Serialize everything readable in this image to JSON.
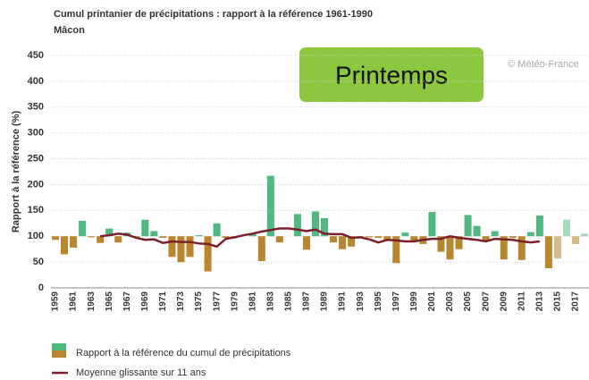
{
  "chart_data": {
    "type": "bar",
    "title": "Cumul printanier de précipitations : rapport à la référence 1961-1990",
    "subtitle": "Mâcon",
    "ylabel": "Rapport à la référence (%)",
    "watermark": "© Météo-France",
    "badge": "Printemps",
    "categories": [
      1959,
      null,
      1961,
      null,
      1963,
      null,
      1965,
      null,
      1967,
      null,
      1969,
      null,
      1971,
      null,
      1973,
      null,
      1975,
      null,
      1977,
      null,
      1979,
      null,
      1981,
      null,
      1983,
      null,
      1985,
      null,
      1987,
      null,
      1989,
      null,
      1991,
      null,
      1993,
      null,
      1995,
      null,
      1997,
      null,
      1999,
      null,
      2001,
      null,
      2003,
      null,
      2005,
      null,
      2007,
      null,
      2009,
      null,
      2011,
      null,
      2013,
      null,
      2015,
      null,
      2017,
      null
    ],
    "baseline": 100,
    "series": [
      {
        "name": "Rapport à la référence du cumul de précipitations",
        "color": "#52b882",
        "color_below": "#b8862e",
        "values": [
          93,
          65,
          78,
          130,
          98,
          87,
          115,
          88,
          107,
          98,
          132,
          110,
          97,
          60,
          50,
          60,
          102,
          32,
          125,
          97,
          98,
          100,
          104,
          52,
          217,
          88,
          100,
          143,
          74,
          148,
          135,
          88,
          75,
          80,
          97,
          98,
          97,
          93,
          48,
          107,
          90,
          85,
          147,
          70,
          55,
          75,
          141,
          120,
          92,
          110,
          55,
          97,
          54,
          108,
          140,
          38,
          57,
          132,
          85,
          105
        ],
        "colors": [
          "#b8862e",
          "#b8862e",
          "#b8862e",
          "#52b882",
          "#b8862e",
          "#b8862e",
          "#52b882",
          "#b8862e",
          "#52b882",
          "#b8862e",
          "#52b882",
          "#52b882",
          "#b8862e",
          "#b8862e",
          "#b8862e",
          "#b8862e",
          "#52b882",
          "#b8862e",
          "#52b882",
          "#b8862e",
          "#b8862e",
          "#52b882",
          "#52b882",
          "#b8862e",
          "#52b882",
          "#b8862e",
          "#52b882",
          "#52b882",
          "#b8862e",
          "#52b882",
          "#52b882",
          "#b8862e",
          "#b8862e",
          "#b8862e",
          "#b8862e",
          "#b8862e",
          "#b8862e",
          "#b8862e",
          "#b8862e",
          "#52b882",
          "#b8862e",
          "#b8862e",
          "#52b882",
          "#b8862e",
          "#b8862e",
          "#b8862e",
          "#52b882",
          "#52b882",
          "#b8862e",
          "#52b882",
          "#b8862e",
          "#b8862e",
          "#b8862e",
          "#52b882",
          "#52b882",
          "#b8862e",
          "#d9b98c",
          "#a6d8bc",
          "#d9b98c",
          "#a6d8bc"
        ]
      },
      {
        "name": "Moyenne glissante sur 11 ans",
        "type": "line",
        "color": "#7b1f2b",
        "values": [
          null,
          null,
          null,
          null,
          null,
          100,
          102,
          105,
          103,
          97,
          93,
          94,
          87,
          90,
          89,
          89,
          86,
          85,
          80,
          95,
          98,
          102,
          105,
          109,
          112,
          115,
          115,
          113,
          110,
          113,
          105,
          104,
          104,
          97,
          98,
          94,
          88,
          93,
          92,
          90,
          90,
          93,
          95,
          95,
          100,
          97,
          95,
          93,
          90,
          95,
          94,
          93,
          90,
          88,
          90,
          null,
          null,
          null,
          null,
          null
        ]
      }
    ],
    "ylim": [
      0,
      450
    ],
    "yticks": [
      0,
      50,
      100,
      150,
      200,
      250,
      300,
      350,
      400,
      450
    ],
    "grid": true
  }
}
